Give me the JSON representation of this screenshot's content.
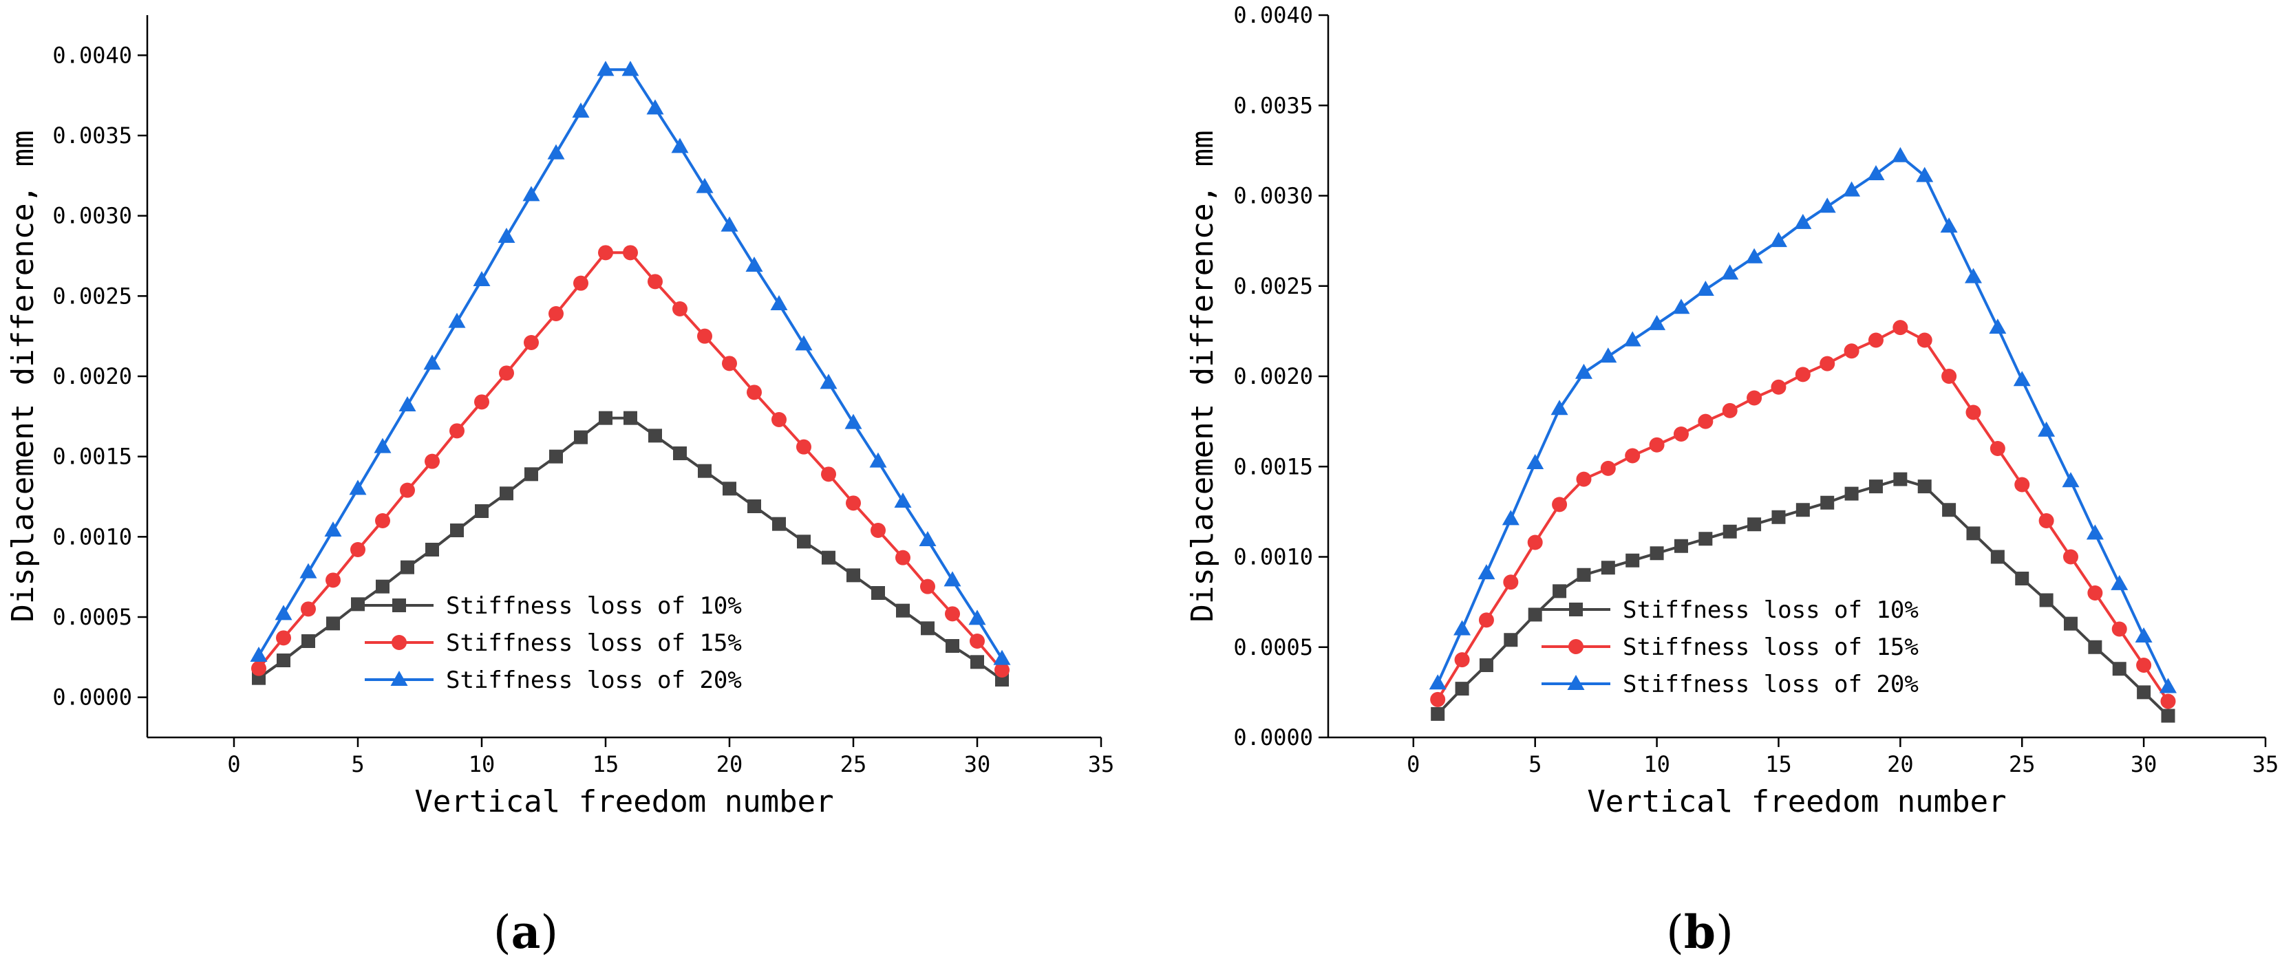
{
  "chart_data": [
    {
      "type": "line",
      "panel_label": {
        "open": "(",
        "letter": "a",
        "close": ")"
      },
      "xlabel": "Vertical freedom number",
      "ylabel": "Displacement difference, mm",
      "xlim": [
        -3.5,
        35
      ],
      "ylim": [
        -0.00025,
        0.00425
      ],
      "xticks": [
        0,
        5,
        10,
        15,
        20,
        25,
        30,
        35
      ],
      "xtick_labels": [
        "0",
        "5",
        "10",
        "15",
        "20",
        "25",
        "30",
        "35"
      ],
      "yticks": [
        0,
        0.0005,
        0.001,
        0.0015,
        0.002,
        0.0025,
        0.003,
        0.0035,
        0.004
      ],
      "ytick_labels": [
        "0.0000",
        "0.0005",
        "0.0010",
        "0.0015",
        "0.0020",
        "0.0025",
        "0.0030",
        "0.0035",
        "0.0040"
      ],
      "grid": false,
      "legend_position": "bottom-center",
      "x": [
        1,
        2,
        3,
        4,
        5,
        6,
        7,
        8,
        9,
        10,
        11,
        12,
        13,
        14,
        15,
        16,
        17,
        18,
        19,
        20,
        21,
        22,
        23,
        24,
        25,
        26,
        27,
        28,
        29,
        30,
        31
      ],
      "series": [
        {
          "name": "Stiffness loss of 10%",
          "color": "#444444",
          "marker": "square",
          "values": [
            0.00012,
            0.00023,
            0.00035,
            0.00046,
            0.00058,
            0.00069,
            0.00081,
            0.00092,
            0.00104,
            0.00116,
            0.00127,
            0.00139,
            0.0015,
            0.00162,
            0.00174,
            0.00174,
            0.00163,
            0.00152,
            0.00141,
            0.0013,
            0.00119,
            0.00108,
            0.00097,
            0.00087,
            0.00076,
            0.00065,
            0.00054,
            0.00043,
            0.00032,
            0.00022,
            0.00011
          ]
        },
        {
          "name": "Stiffness loss of 15%",
          "color": "#ee3a3a",
          "marker": "circle",
          "values": [
            0.00018,
            0.00037,
            0.00055,
            0.00073,
            0.00092,
            0.0011,
            0.00129,
            0.00147,
            0.00166,
            0.00184,
            0.00202,
            0.00221,
            0.00239,
            0.00258,
            0.00277,
            0.00277,
            0.00259,
            0.00242,
            0.00225,
            0.00208,
            0.0019,
            0.00173,
            0.00156,
            0.00139,
            0.00121,
            0.00104,
            0.00087,
            0.00069,
            0.00052,
            0.00035,
            0.00017
          ]
        },
        {
          "name": "Stiffness loss of 20%",
          "color": "#1a6fdf",
          "marker": "triangle",
          "values": [
            0.00026,
            0.00052,
            0.00078,
            0.00104,
            0.0013,
            0.00156,
            0.00182,
            0.00208,
            0.00234,
            0.0026,
            0.00287,
            0.00313,
            0.00339,
            0.00365,
            0.00391,
            0.00391,
            0.00367,
            0.00343,
            0.00318,
            0.00294,
            0.00269,
            0.00245,
            0.0022,
            0.00196,
            0.00171,
            0.00147,
            0.00122,
            0.00098,
            0.00073,
            0.00049,
            0.00024
          ]
        }
      ]
    },
    {
      "type": "line",
      "panel_label": {
        "open": "(",
        "letter": "b",
        "close": ")"
      },
      "xlabel": "Vertical freedom number",
      "ylabel": "Displacement difference, mm",
      "xlim": [
        -3.5,
        35
      ],
      "ylim": [
        0,
        0.004
      ],
      "xticks": [
        0,
        5,
        10,
        15,
        20,
        25,
        30,
        35
      ],
      "xtick_labels": [
        "0",
        "5",
        "10",
        "15",
        "20",
        "25",
        "30",
        "35"
      ],
      "yticks": [
        0,
        0.0005,
        0.001,
        0.0015,
        0.002,
        0.0025,
        0.003,
        0.0035,
        0.004
      ],
      "ytick_labels": [
        "0.0000",
        "0.0005",
        "0.0010",
        "0.0015",
        "0.0020",
        "0.0025",
        "0.0030",
        "0.0035",
        "0.0040"
      ],
      "grid": false,
      "legend_position": "bottom-center",
      "x": [
        1,
        2,
        3,
        4,
        5,
        6,
        7,
        8,
        9,
        10,
        11,
        12,
        13,
        14,
        15,
        16,
        17,
        18,
        19,
        20,
        21,
        22,
        23,
        24,
        25,
        26,
        27,
        28,
        29,
        30,
        31
      ],
      "series": [
        {
          "name": "Stiffness loss of 10%",
          "color": "#444444",
          "marker": "square",
          "values": [
            0.00013,
            0.00027,
            0.0004,
            0.00054,
            0.00068,
            0.00081,
            0.0009,
            0.00094,
            0.00098,
            0.00102,
            0.00106,
            0.0011,
            0.00114,
            0.00118,
            0.00122,
            0.00126,
            0.0013,
            0.00135,
            0.00139,
            0.00143,
            0.00139,
            0.00126,
            0.00113,
            0.001,
            0.00088,
            0.00076,
            0.00063,
            0.0005,
            0.00038,
            0.00025,
            0.00012
          ]
        },
        {
          "name": "Stiffness loss of 15%",
          "color": "#ee3a3a",
          "marker": "circle",
          "values": [
            0.00021,
            0.00043,
            0.00065,
            0.00086,
            0.00108,
            0.00129,
            0.00143,
            0.00149,
            0.00156,
            0.00162,
            0.00168,
            0.00175,
            0.00181,
            0.00188,
            0.00194,
            0.00201,
            0.00207,
            0.00214,
            0.0022,
            0.00227,
            0.0022,
            0.002,
            0.0018,
            0.0016,
            0.0014,
            0.0012,
            0.001,
            0.0008,
            0.0006,
            0.0004,
            0.0002
          ]
        },
        {
          "name": "Stiffness loss of 20%",
          "color": "#1a6fdf",
          "marker": "triangle",
          "values": [
            0.0003,
            0.0006,
            0.00091,
            0.00121,
            0.00152,
            0.00182,
            0.00202,
            0.00211,
            0.0022,
            0.00229,
            0.00238,
            0.00248,
            0.00257,
            0.00266,
            0.00275,
            0.00285,
            0.00294,
            0.00303,
            0.00312,
            0.00322,
            0.00311,
            0.00283,
            0.00255,
            0.00227,
            0.00198,
            0.0017,
            0.00142,
            0.00113,
            0.00085,
            0.00056,
            0.00028
          ]
        }
      ]
    }
  ]
}
